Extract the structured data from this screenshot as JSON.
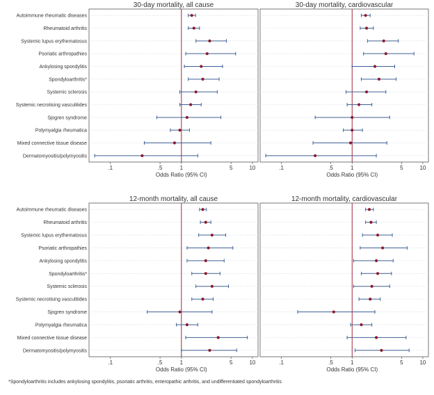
{
  "chart_data": [
    {
      "type": "forest",
      "title": "30-day mortality, all cause",
      "xlabel": "Odds Ratio (95% CI)",
      "xscale": "log",
      "xlim": [
        0.05,
        12
      ],
      "xticks": [
        0.1,
        0.5,
        1,
        5,
        10
      ],
      "xtick_labels": [
        ".1",
        ".5",
        "1",
        "5",
        "10"
      ],
      "reference_line": 1,
      "categories": [
        "Autoimmune rheumatic diseases",
        "Rheumatoid arthritis",
        "Systemic lupus erythematosus",
        "Psoriatic arthropathies",
        "Ankylosing spondylitis",
        "Spondyloarthritis*",
        "Systemic sclerosis",
        "Systemic necrotising vasculitides",
        "Sjogren syndrome",
        "Polymyalgia rheumatica",
        "Mixed connective tissue disease",
        "Dermatomyositis/polymyositis"
      ],
      "estimates": [
        1.4,
        1.5,
        2.5,
        2.3,
        1.9,
        2.0,
        1.6,
        1.35,
        1.2,
        0.95,
        0.8,
        0.28
      ],
      "lower": [
        1.25,
        1.25,
        1.6,
        1.15,
        1.1,
        1.25,
        0.95,
        0.95,
        0.45,
        0.7,
        0.3,
        0.06
      ],
      "upper": [
        1.58,
        1.8,
        4.3,
        5.8,
        3.8,
        3.4,
        3.2,
        1.9,
        3.6,
        1.3,
        2.6,
        1.7
      ]
    },
    {
      "type": "forest",
      "title": "30-day mortality, cardiovascular",
      "xlabel": "Odds Ratio (95% CI)",
      "xscale": "log",
      "xlim": [
        0.05,
        12
      ],
      "xticks": [
        0.1,
        0.5,
        1,
        5,
        10
      ],
      "xtick_labels": [
        ".1",
        ".5",
        "1",
        "5",
        "10"
      ],
      "reference_line": 1,
      "categories": [
        "Autoimmune rheumatic diseases",
        "Rheumatoid arthritis",
        "Systemic lupus erythematosus",
        "Psoriatic arthropathies",
        "Ankylosing spondylitis",
        "Spondyloarthritis*",
        "Systemic sclerosis",
        "Systemic necrotising vasculitides",
        "Sjogren syndrome",
        "Polymyalgia rheumatica",
        "Mixed connective tissue disease",
        "Dermatomyositis/polymyositis"
      ],
      "estimates": [
        1.55,
        1.6,
        2.8,
        3.0,
        2.1,
        2.4,
        1.6,
        1.25,
        1.0,
        1.0,
        0.95,
        0.3
      ],
      "lower": [
        1.35,
        1.3,
        1.65,
        1.45,
        1.0,
        1.35,
        0.82,
        0.85,
        0.3,
        0.75,
        0.28,
        0.06
      ],
      "upper": [
        1.8,
        2.0,
        4.5,
        7.5,
        4.0,
        4.2,
        3.0,
        1.9,
        3.4,
        1.4,
        3.1,
        2.2
      ]
    },
    {
      "type": "forest",
      "title": "12-month mortality, all cause",
      "xlabel": "Odds Ratio (95% CI)",
      "xscale": "log",
      "xlim": [
        0.05,
        12
      ],
      "xticks": [
        0.1,
        0.5,
        1,
        5,
        10
      ],
      "xtick_labels": [
        ".1",
        ".5",
        "1",
        "5",
        "10"
      ],
      "reference_line": 1,
      "categories": [
        "Autoimmune rheumatic diseases",
        "Rheumatoid arthritis",
        "Systemic lupus erythematosus",
        "Psoriatic arthropathies",
        "Ankylosing spondylitis",
        "Spondyloarthritis*",
        "Systemic sclerosis",
        "Systemic necrotising vasculitides",
        "Sjogren syndrome",
        "Polymyalgia rheumatica",
        "Mixed connective tissue disease",
        "Dermatomyositis/polymyositis"
      ],
      "estimates": [
        2.0,
        2.2,
        2.7,
        2.4,
        2.2,
        2.2,
        2.7,
        2.0,
        0.95,
        1.2,
        3.3,
        2.5
      ],
      "lower": [
        1.8,
        1.85,
        1.75,
        1.2,
        1.2,
        1.4,
        1.6,
        1.4,
        0.33,
        0.85,
        1.15,
        1.0
      ],
      "upper": [
        2.25,
        2.6,
        4.2,
        5.3,
        4.0,
        3.5,
        4.6,
        2.8,
        2.7,
        1.7,
        8.5,
        6.0
      ]
    },
    {
      "type": "forest",
      "title": "12-month mortality, cardiovascular",
      "xlabel": "Odds Ratio (95% CI)",
      "xscale": "log",
      "xlim": [
        0.05,
        12
      ],
      "xticks": [
        0.1,
        0.5,
        1,
        5,
        10
      ],
      "xtick_labels": [
        ".1",
        ".5",
        "1",
        "5",
        "10"
      ],
      "reference_line": 1,
      "categories": [
        "Autoimmune rheumatic diseases",
        "Rheumatoid arthritis",
        "Systemic lupus erythematosus",
        "Psoriatic arthropathies",
        "Ankylosing spondylitis",
        "Spondyloarthritis*",
        "Systemic sclerosis",
        "Systemic necrotising vasculitides",
        "Sjogren syndrome",
        "Polymyalgia rheumatica",
        "Mixed connective tissue disease",
        "Dermatomyositis/polymyositis"
      ],
      "estimates": [
        1.75,
        1.85,
        2.3,
        2.7,
        2.2,
        2.3,
        1.9,
        1.8,
        0.55,
        1.35,
        2.2,
        2.6
      ],
      "lower": [
        1.55,
        1.55,
        1.4,
        1.3,
        1.05,
        1.35,
        1.05,
        1.25,
        0.17,
        0.95,
        0.85,
        1.1
      ],
      "upper": [
        2.0,
        2.2,
        3.7,
        6.0,
        3.8,
        3.6,
        3.4,
        2.5,
        2.1,
        1.9,
        5.8,
        6.4
      ]
    }
  ],
  "footnote": "*Spondyloarthritis includes ankylosing spondylitis, psoriatic arthritis, enteropathic arthritis, and undifferentiated spondyloarthritis",
  "colors": {
    "background": "#ffffff",
    "panel_border": "#555555",
    "point": "#8b1a2b",
    "ci_line": "#3f5f95",
    "reference_line": "#a0283c",
    "gridline": "#c8d2dc",
    "title_text": "#333333",
    "axis_text": "#333333"
  }
}
